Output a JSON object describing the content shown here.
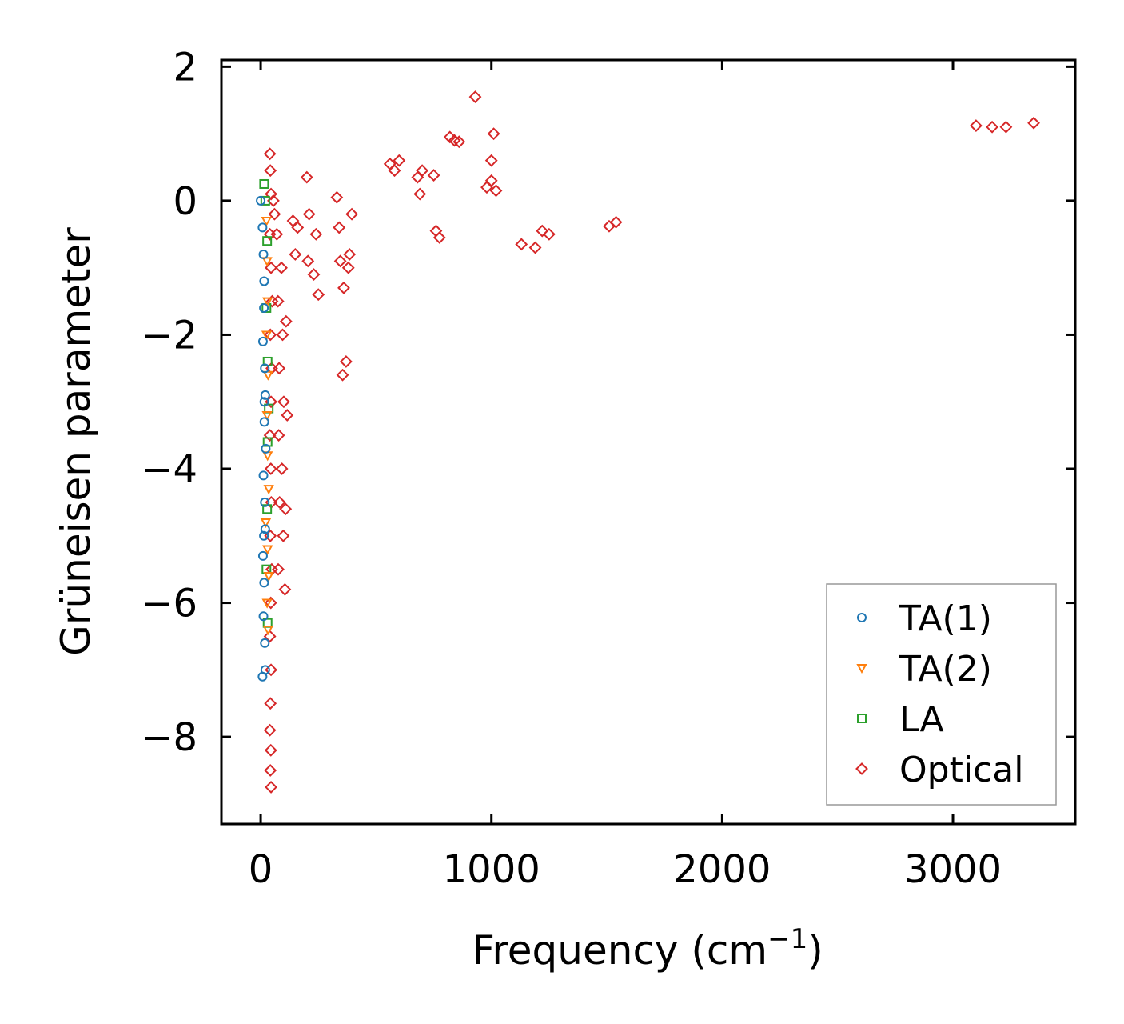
{
  "chart_data": {
    "type": "scatter",
    "title": "",
    "xlabel": "Frequency (cm",
    "xlabel_superscript": "−1",
    "xlabel_suffix": ")",
    "ylabel": "Grüneisen parameter",
    "xlim": [
      -170,
      3530
    ],
    "ylim": [
      -9.3,
      2.1
    ],
    "x_ticks": [
      0,
      1000,
      2000,
      3000
    ],
    "x_tick_labels": [
      "0",
      "1000",
      "2000",
      "3000"
    ],
    "y_ticks": [
      2,
      0,
      -2,
      -4,
      -6,
      -8
    ],
    "y_tick_labels": [
      "2",
      "0",
      "−2",
      "−4",
      "−6",
      "−8"
    ],
    "grid": false,
    "legend_position": "bottom-right",
    "series": [
      {
        "name": "TA(1)",
        "marker": "circle",
        "color": "#1f77b4",
        "points": [
          [
            0,
            0
          ],
          [
            8,
            -0.4
          ],
          [
            12,
            -0.8
          ],
          [
            15,
            -1.2
          ],
          [
            14,
            -1.6
          ],
          [
            10,
            -2.1
          ],
          [
            18,
            -2.5
          ],
          [
            20,
            -2.9
          ],
          [
            16,
            -3.3
          ],
          [
            22,
            -3.7
          ],
          [
            12,
            -4.1
          ],
          [
            18,
            -4.5
          ],
          [
            20,
            -4.9
          ],
          [
            10,
            -5.3
          ],
          [
            15,
            -5.7
          ],
          [
            12,
            -6.2
          ],
          [
            18,
            -6.6
          ],
          [
            8,
            -7.1
          ],
          [
            20,
            -7.0
          ],
          [
            14,
            -5.0
          ],
          [
            16,
            -3.0
          ]
        ]
      },
      {
        "name": "TA(2)",
        "marker": "triangle-down",
        "color": "#ff7f0e",
        "points": [
          [
            25,
            -0.3
          ],
          [
            28,
            -0.9
          ],
          [
            30,
            -1.5
          ],
          [
            26,
            -2.0
          ],
          [
            32,
            -2.6
          ],
          [
            28,
            -3.2
          ],
          [
            30,
            -3.8
          ],
          [
            35,
            -4.3
          ],
          [
            22,
            -4.8
          ],
          [
            30,
            -5.2
          ],
          [
            35,
            -5.6
          ],
          [
            28,
            -6.0
          ],
          [
            32,
            -6.4
          ]
        ]
      },
      {
        "name": "LA",
        "marker": "square",
        "color": "#2ca02c",
        "points": [
          [
            15,
            0.25
          ],
          [
            20,
            0.0
          ],
          [
            28,
            -0.6
          ],
          [
            25,
            -1.6
          ],
          [
            30,
            -2.4
          ],
          [
            35,
            -3.1
          ],
          [
            30,
            -3.6
          ],
          [
            28,
            -4.6
          ],
          [
            25,
            -5.5
          ],
          [
            30,
            -6.3
          ]
        ]
      },
      {
        "name": "Optical",
        "marker": "diamond",
        "color": "#d62728",
        "points": [
          [
            40,
            0.7
          ],
          [
            42,
            0.45
          ],
          [
            45,
            0.1
          ],
          [
            55,
            0.0
          ],
          [
            60,
            -0.2
          ],
          [
            40,
            -0.5
          ],
          [
            45,
            -1.0
          ],
          [
            50,
            -1.5
          ],
          [
            42,
            -2.0
          ],
          [
            48,
            -2.5
          ],
          [
            45,
            -3.0
          ],
          [
            40,
            -3.5
          ],
          [
            44,
            -4.0
          ],
          [
            46,
            -4.5
          ],
          [
            42,
            -5.0
          ],
          [
            48,
            -5.5
          ],
          [
            44,
            -6.0
          ],
          [
            40,
            -6.5
          ],
          [
            45,
            -7.0
          ],
          [
            42,
            -7.5
          ],
          [
            40,
            -7.9
          ],
          [
            44,
            -8.2
          ],
          [
            42,
            -8.5
          ],
          [
            45,
            -8.75
          ],
          [
            70,
            -0.5
          ],
          [
            75,
            -1.5
          ],
          [
            80,
            -2.5
          ],
          [
            78,
            -3.5
          ],
          [
            82,
            -4.5
          ],
          [
            76,
            -5.5
          ],
          [
            90,
            -1.0
          ],
          [
            95,
            -2.0
          ],
          [
            100,
            -3.0
          ],
          [
            92,
            -4.0
          ],
          [
            98,
            -5.0
          ],
          [
            105,
            -5.8
          ],
          [
            110,
            -1.8
          ],
          [
            115,
            -3.2
          ],
          [
            108,
            -4.6
          ],
          [
            140,
            -0.3
          ],
          [
            150,
            -0.8
          ],
          [
            160,
            -0.4
          ],
          [
            200,
            0.35
          ],
          [
            210,
            -0.2
          ],
          [
            205,
            -0.9
          ],
          [
            230,
            -1.1
          ],
          [
            240,
            -0.5
          ],
          [
            250,
            -1.4
          ],
          [
            330,
            0.05
          ],
          [
            340,
            -0.4
          ],
          [
            345,
            -0.9
          ],
          [
            360,
            -1.3
          ],
          [
            370,
            -2.4
          ],
          [
            355,
            -2.6
          ],
          [
            385,
            -0.8
          ],
          [
            395,
            -0.2
          ],
          [
            380,
            -1.0
          ],
          [
            560,
            0.55
          ],
          [
            580,
            0.45
          ],
          [
            600,
            0.6
          ],
          [
            680,
            0.35
          ],
          [
            690,
            0.1
          ],
          [
            700,
            0.45
          ],
          [
            750,
            0.38
          ],
          [
            760,
            -0.45
          ],
          [
            775,
            -0.55
          ],
          [
            820,
            0.95
          ],
          [
            840,
            0.9
          ],
          [
            860,
            0.88
          ],
          [
            930,
            1.55
          ],
          [
            980,
            0.2
          ],
          [
            1000,
            0.6
          ],
          [
            1010,
            1.0
          ],
          [
            1000,
            0.3
          ],
          [
            1020,
            0.15
          ],
          [
            1130,
            -0.65
          ],
          [
            1190,
            -0.7
          ],
          [
            1220,
            -0.45
          ],
          [
            1250,
            -0.5
          ],
          [
            1510,
            -0.38
          ],
          [
            1540,
            -0.32
          ],
          [
            3100,
            1.12
          ],
          [
            3170,
            1.1
          ],
          [
            3230,
            1.1
          ],
          [
            3350,
            1.16
          ]
        ]
      }
    ]
  }
}
